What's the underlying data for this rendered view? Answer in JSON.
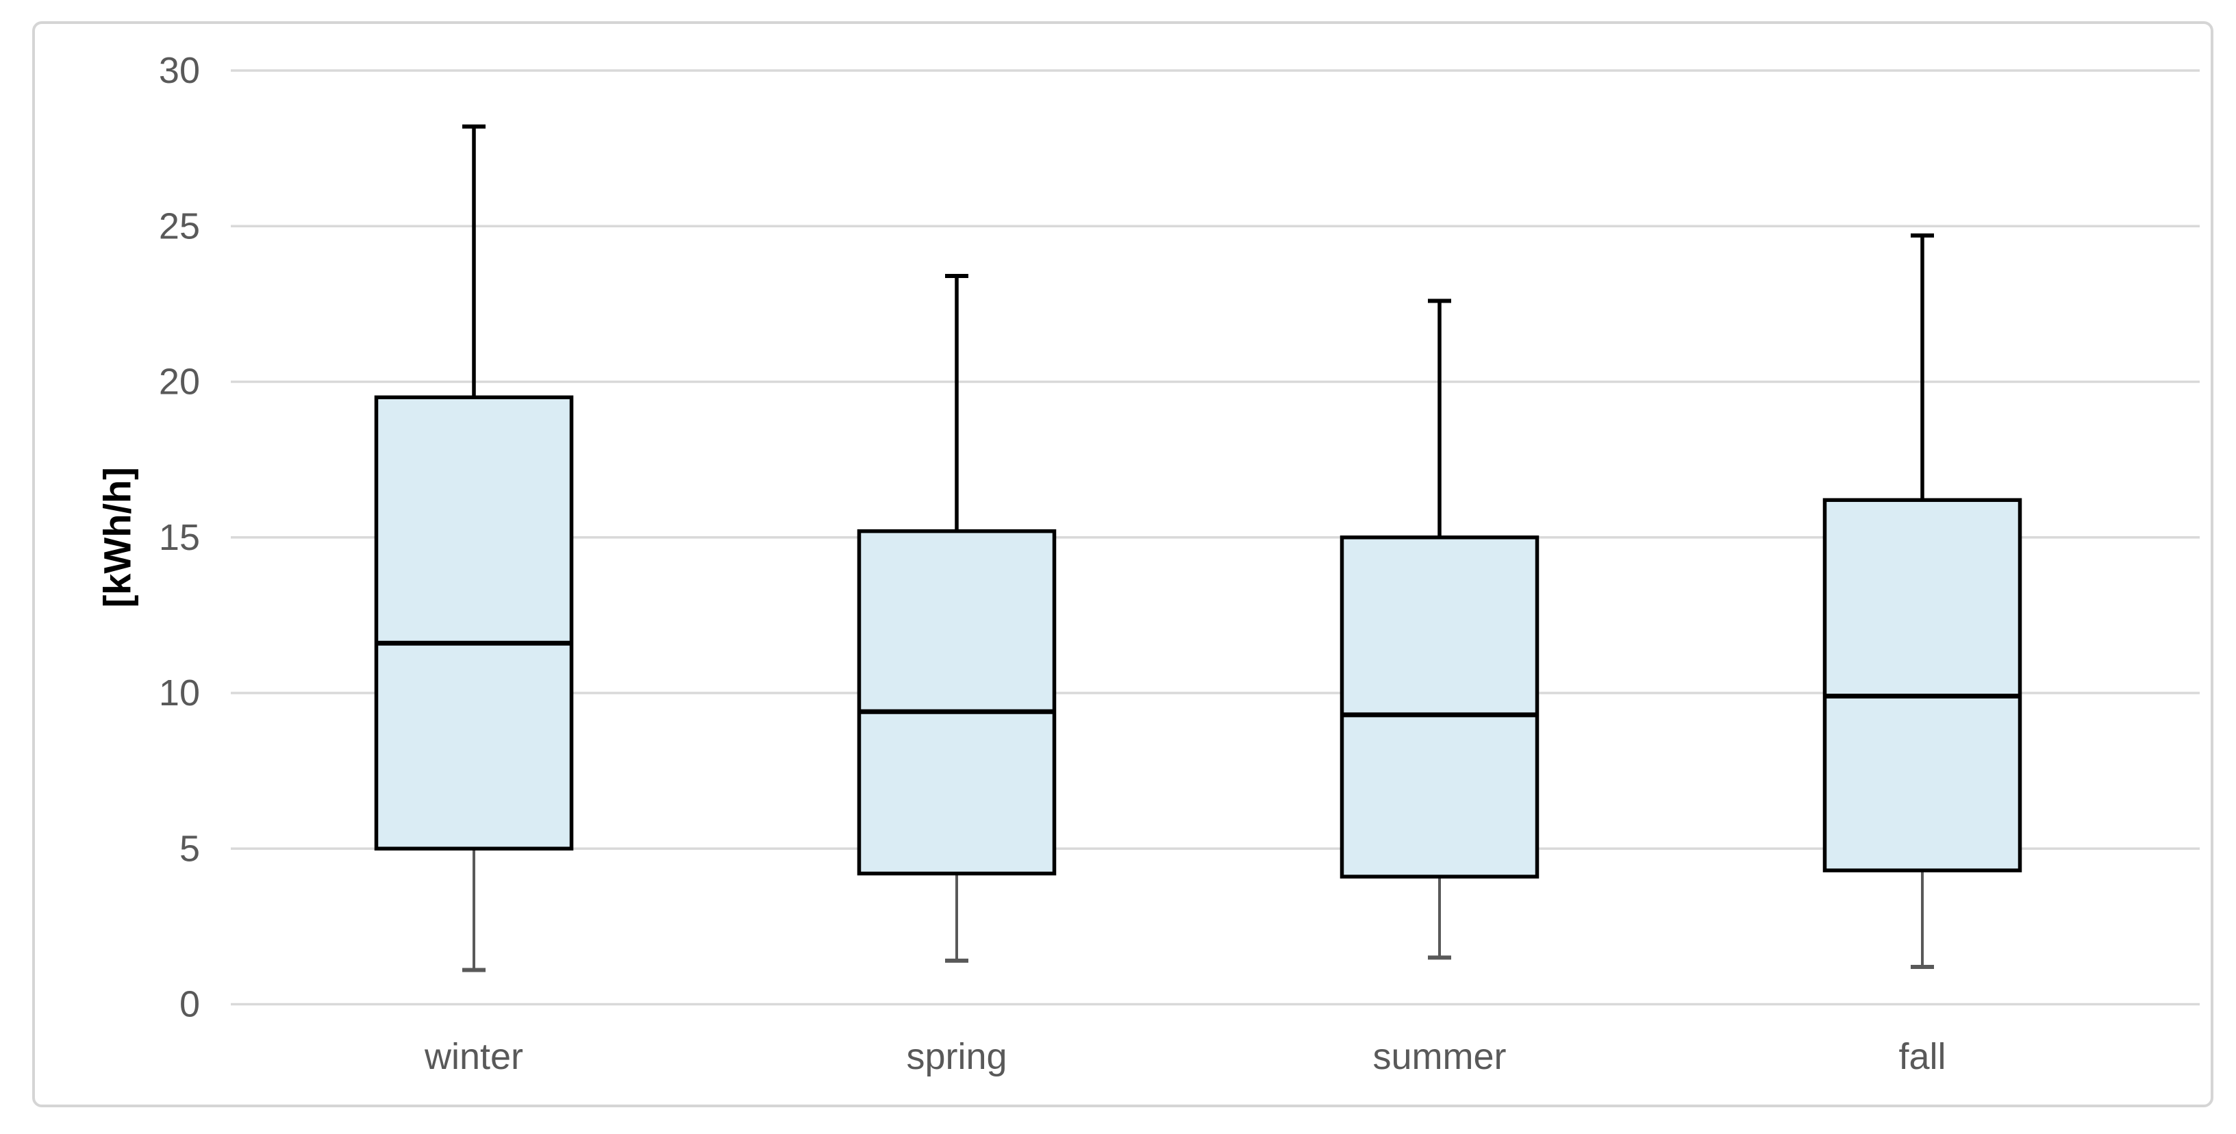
{
  "chart_data": {
    "type": "boxplot",
    "title": "",
    "xlabel": "",
    "ylabel": "[kWh/h]",
    "categories": [
      "winter",
      "spring",
      "summer",
      "fall"
    ],
    "yticks": [
      0,
      5,
      10,
      15,
      20,
      25,
      30
    ],
    "ylim": [
      0,
      30
    ],
    "grid": true,
    "legend": "none",
    "series": [
      {
        "name": "winter",
        "min": 1.1,
        "q1": 5.0,
        "median": 11.6,
        "q3": 19.5,
        "max": 28.2
      },
      {
        "name": "spring",
        "min": 1.4,
        "q1": 4.2,
        "median": 9.4,
        "q3": 15.2,
        "max": 23.4
      },
      {
        "name": "summer",
        "min": 1.5,
        "q1": 4.1,
        "median": 9.3,
        "q3": 15.0,
        "max": 22.6
      },
      {
        "name": "fall",
        "min": 1.2,
        "q1": 4.3,
        "median": 9.9,
        "q3": 16.2,
        "max": 24.7
      }
    ],
    "colors": {
      "box_fill": "#daecf4",
      "box_border": "#000000",
      "median": "#000000",
      "upper_whisker": "#000000",
      "lower_whisker": "#595959",
      "gridline": "#d9d9d9",
      "tick_text": "#595959",
      "category_text": "#595959",
      "axis_title_text": "#000000",
      "frame_border": "#d5d5d5",
      "background": "#ffffff"
    }
  }
}
